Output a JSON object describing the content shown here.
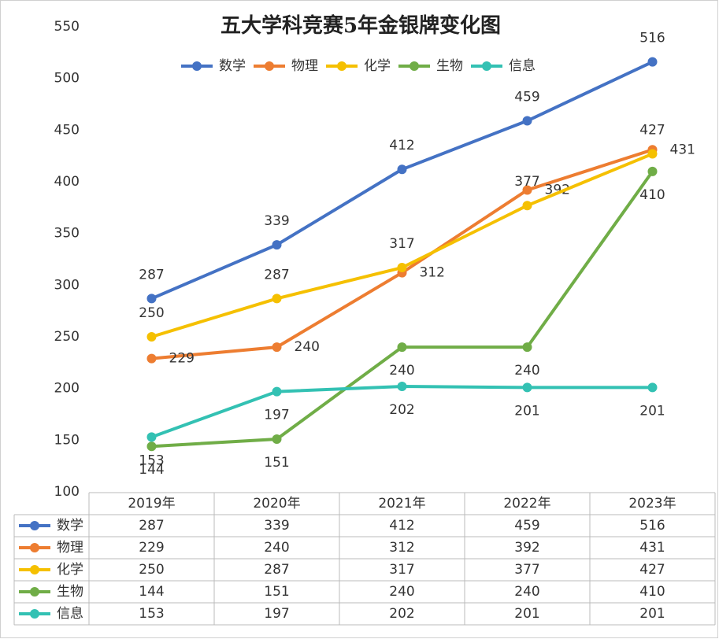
{
  "chart_data": {
    "type": "line",
    "title": "五大学科竞赛5年金银牌变化图",
    "categories": [
      "2019年",
      "2020年",
      "2021年",
      "2022年",
      "2023年"
    ],
    "series": [
      {
        "name": "数学",
        "color": "#4472c4",
        "values": [
          287,
          339,
          412,
          459,
          516
        ]
      },
      {
        "name": "物理",
        "color": "#ed7d31",
        "values": [
          229,
          240,
          312,
          392,
          431
        ]
      },
      {
        "name": "化学",
        "color": "#f5c000",
        "values": [
          250,
          287,
          317,
          377,
          427
        ]
      },
      {
        "name": "生物",
        "color": "#70ad47",
        "values": [
          144,
          151,
          240,
          240,
          410
        ]
      },
      {
        "name": "信息",
        "color": "#33c1b3",
        "values": [
          153,
          197,
          202,
          201,
          201
        ]
      }
    ],
    "ylim": [
      100,
      550
    ],
    "yticks": [
      100,
      150,
      200,
      250,
      300,
      350,
      400,
      450,
      500,
      550
    ],
    "grid": false,
    "legend": "top",
    "data_table": true
  }
}
